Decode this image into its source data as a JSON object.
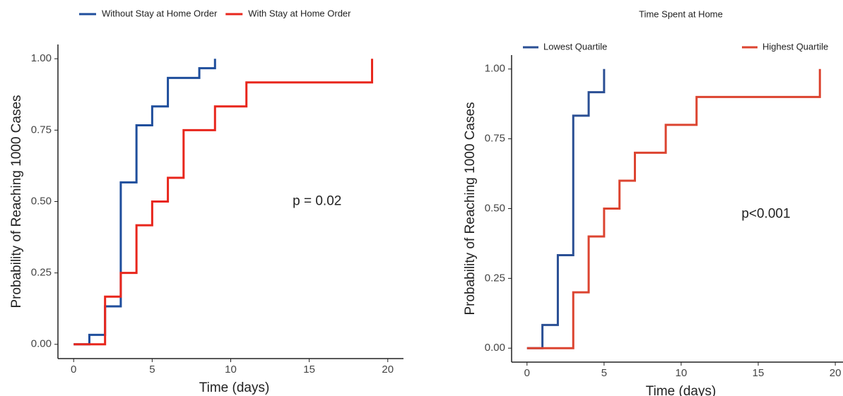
{
  "chart_data": [
    {
      "type": "step",
      "x_label": "Time (days)",
      "y_label": "Probability of Reaching 1000 Cases",
      "annotation": "p = 0.02",
      "legend": "top",
      "xlim": [
        -1,
        21
      ],
      "ylim": [
        -0.05,
        1.05
      ],
      "xticks": [
        0,
        5,
        10,
        15,
        20
      ],
      "yticks": [
        {
          "value": 0,
          "label": "0.00"
        },
        {
          "value": 0.25,
          "label": "0.25"
        },
        {
          "value": 0.5,
          "label": "0.50"
        },
        {
          "value": 0.75,
          "label": "0.75"
        },
        {
          "value": 1,
          "label": "1.00"
        }
      ],
      "series": [
        {
          "name": "Without Stay at Home Order",
          "color": "#1f4e9c",
          "x": [
            0,
            1,
            2,
            3,
            4,
            5,
            6,
            8,
            9
          ],
          "values": [
            0,
            0.033,
            0.133,
            0.567,
            0.767,
            0.833,
            0.933,
            0.967,
            1.0
          ]
        },
        {
          "name": "With Stay at Home Order",
          "color": "#e8261c",
          "x": [
            0,
            2,
            3,
            4,
            5,
            6,
            7,
            9,
            11,
            19
          ],
          "values": [
            0,
            0.167,
            0.25,
            0.417,
            0.5,
            0.583,
            0.75,
            0.833,
            0.917,
            1.0
          ]
        }
      ]
    },
    {
      "type": "step",
      "title": "Time Spent at Home",
      "x_label": "Time (days)",
      "y_label": "Probability of Reaching 1000 Cases",
      "annotation": "p<0.001",
      "legend": "inside-top",
      "xlim": [
        -1,
        20.5
      ],
      "ylim": [
        -0.05,
        1.05
      ],
      "xticks": [
        0,
        5,
        10,
        15,
        20
      ],
      "yticks": [
        {
          "value": 0,
          "label": "0.00"
        },
        {
          "value": 0.25,
          "label": "0.25"
        },
        {
          "value": 0.5,
          "label": "0.50"
        },
        {
          "value": 0.75,
          "label": "0.75"
        },
        {
          "value": 1,
          "label": "1.00"
        }
      ],
      "series": [
        {
          "name": "Lowest Quartile",
          "color": "#2a4f94",
          "x": [
            0,
            1,
            2,
            3,
            4,
            5
          ],
          "values": [
            0,
            0.083,
            0.333,
            0.833,
            0.917,
            1.0
          ]
        },
        {
          "name": "Highest Quartile",
          "color": "#dc4430",
          "x": [
            0,
            3,
            4,
            5,
            6,
            7,
            9,
            11,
            19
          ],
          "values": [
            0,
            0.2,
            0.4,
            0.5,
            0.6,
            0.7,
            0.8,
            0.9,
            1.0
          ]
        }
      ]
    }
  ]
}
